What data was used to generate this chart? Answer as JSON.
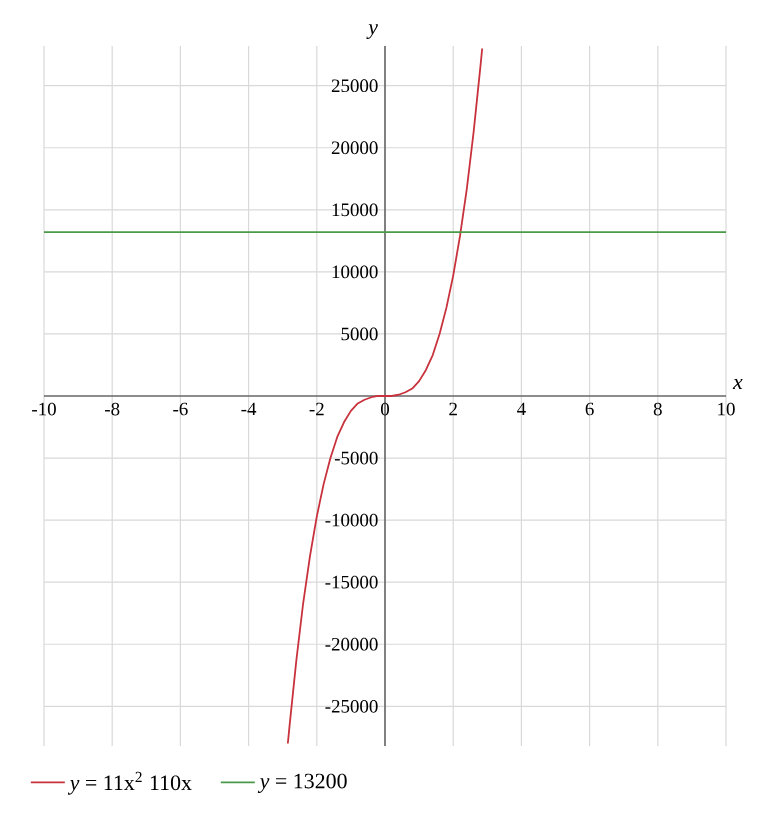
{
  "chart_data": {
    "type": "line",
    "xlabel": "x",
    "ylabel": "y",
    "xlim": [
      -10,
      10
    ],
    "ylim": [
      -28200,
      28200
    ],
    "xticks": [
      -10,
      -8,
      -6,
      -4,
      -2,
      0,
      2,
      4,
      6,
      8,
      10
    ],
    "yticks": [
      -25000,
      -20000,
      -15000,
      -10000,
      -5000,
      5000,
      10000,
      15000,
      20000,
      25000
    ],
    "grid": true,
    "legend": "bottom",
    "series": [
      {
        "name": "*y* = 11x$^{2}$ 110x",
        "color": "#c8323c",
        "x": [
          -2.85,
          -2.8,
          -2.6,
          -2.4,
          -2.2,
          -2.0,
          -1.8,
          -1.6,
          -1.4,
          -1.2,
          -1.0,
          -0.8,
          -0.6,
          -0.4,
          -0.2,
          0,
          0.2,
          0.4,
          0.6,
          0.8,
          1.0,
          1.2,
          1.4,
          1.6,
          1.8,
          2.0,
          2.2,
          2.4,
          2.6,
          2.8,
          2.85
        ],
        "values": [
          -28000,
          -26600,
          -21300,
          -16700,
          -12900,
          -9700,
          -7100,
          -5000,
          -3300,
          -2100,
          -1200,
          -600,
          -300,
          -100,
          0,
          0,
          0,
          100,
          300,
          600,
          1200,
          2100,
          3300,
          5000,
          7100,
          9700,
          12900,
          16700,
          21300,
          26600,
          28000
        ]
      },
      {
        "name": "*y* = 13200",
        "color": "#4a9a4a",
        "x": [
          -10,
          10
        ],
        "values": [
          13200,
          13200
        ]
      }
    ]
  }
}
